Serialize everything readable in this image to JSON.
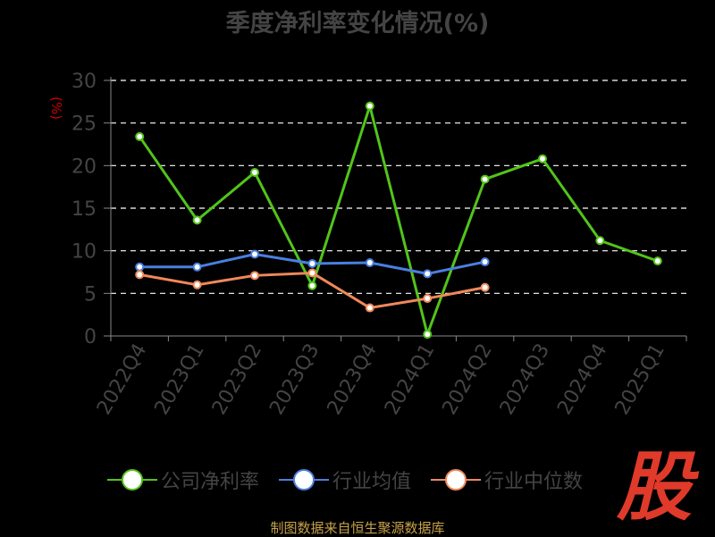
{
  "title": "季度净利率变化情况(%)",
  "unit": "(%)",
  "source": "制图数据来自恒生聚源数据库",
  "logo_text": "股",
  "colors": {
    "company": "#52c41a",
    "industry_avg": "#4a7fe0",
    "industry_median": "#f0885a",
    "axis": "#888888",
    "grid": "#ffffff"
  },
  "chart_data": {
    "type": "line",
    "title": "季度净利率变化情况(%)",
    "ylabel": "(%)",
    "ylim": [
      0,
      30
    ],
    "yticks": [
      0,
      5,
      10,
      15,
      20,
      25,
      30
    ],
    "grid": true,
    "legend_position": "bottom",
    "categories": [
      "2022Q4",
      "2023Q1",
      "2023Q2",
      "2023Q3",
      "2023Q4",
      "2024Q1",
      "2024Q2",
      "2024Q3",
      "2024Q4",
      "2025Q1"
    ],
    "series": [
      {
        "name": "公司净利率",
        "color": "#52c41a",
        "values": [
          23.4,
          13.6,
          19.2,
          5.9,
          27.0,
          0.2,
          18.4,
          20.8,
          11.2,
          8.8
        ]
      },
      {
        "name": "行业均值",
        "color": "#4a7fe0",
        "values": [
          8.1,
          8.1,
          9.6,
          8.5,
          8.6,
          7.3,
          8.7,
          null,
          null,
          null
        ]
      },
      {
        "name": "行业中位数",
        "color": "#f0885a",
        "values": [
          7.2,
          6.0,
          7.1,
          7.4,
          3.3,
          4.4,
          5.7,
          null,
          null,
          null
        ]
      }
    ]
  }
}
